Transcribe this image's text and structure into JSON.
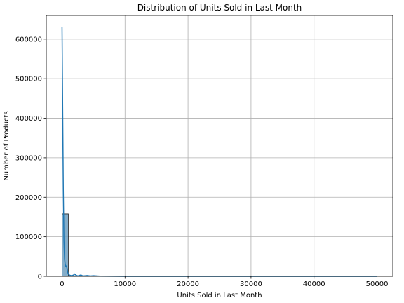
{
  "chart_data": {
    "type": "bar",
    "title": "Distribution of Units Sold in Last Month",
    "xlabel": "Units Sold in Last Month",
    "ylabel": "Number of Products",
    "xlim": [
      -2500,
      52500
    ],
    "ylim": [
      0,
      660000
    ],
    "xticks": [
      0,
      10000,
      20000,
      30000,
      40000,
      50000
    ],
    "yticks": [
      0,
      100000,
      200000,
      300000,
      400000,
      500000,
      600000
    ],
    "grid": true,
    "histogram_bins": [
      {
        "x0": 0,
        "x1": 1000,
        "count": 158000
      },
      {
        "x0": 1000,
        "x1": 2000,
        "count": 1500
      },
      {
        "x0": 2000,
        "x1": 3000,
        "count": 500
      },
      {
        "x0": 3000,
        "x1": 4000,
        "count": 300
      },
      {
        "x0": 4000,
        "x1": 5000,
        "count": 200
      },
      {
        "x0": 5000,
        "x1": 6000,
        "count": 100
      }
    ],
    "kde_curve": [
      [
        0,
        630000
      ],
      [
        100,
        420000
      ],
      [
        200,
        220000
      ],
      [
        300,
        90000
      ],
      [
        400,
        45000
      ],
      [
        500,
        30000
      ],
      [
        600,
        25000
      ],
      [
        700,
        26000
      ],
      [
        800,
        20000
      ],
      [
        900,
        10000
      ],
      [
        1000,
        6000
      ],
      [
        1200,
        3000
      ],
      [
        1500,
        1500
      ],
      [
        1800,
        3000
      ],
      [
        2000,
        6000
      ],
      [
        2200,
        3000
      ],
      [
        2500,
        1000
      ],
      [
        3000,
        3500
      ],
      [
        3300,
        1000
      ],
      [
        4000,
        2000
      ],
      [
        4500,
        800
      ],
      [
        5000,
        1500
      ],
      [
        6000,
        500
      ],
      [
        8000,
        200
      ],
      [
        10000,
        100
      ],
      [
        20000,
        50
      ],
      [
        30000,
        20
      ],
      [
        40000,
        10
      ],
      [
        50000,
        0
      ]
    ],
    "colors": {
      "bar_fill": "#6f9fbf",
      "bar_edge": "#1a1a1a",
      "kde": "#1f77b4",
      "grid": "#b0b0b0"
    }
  }
}
